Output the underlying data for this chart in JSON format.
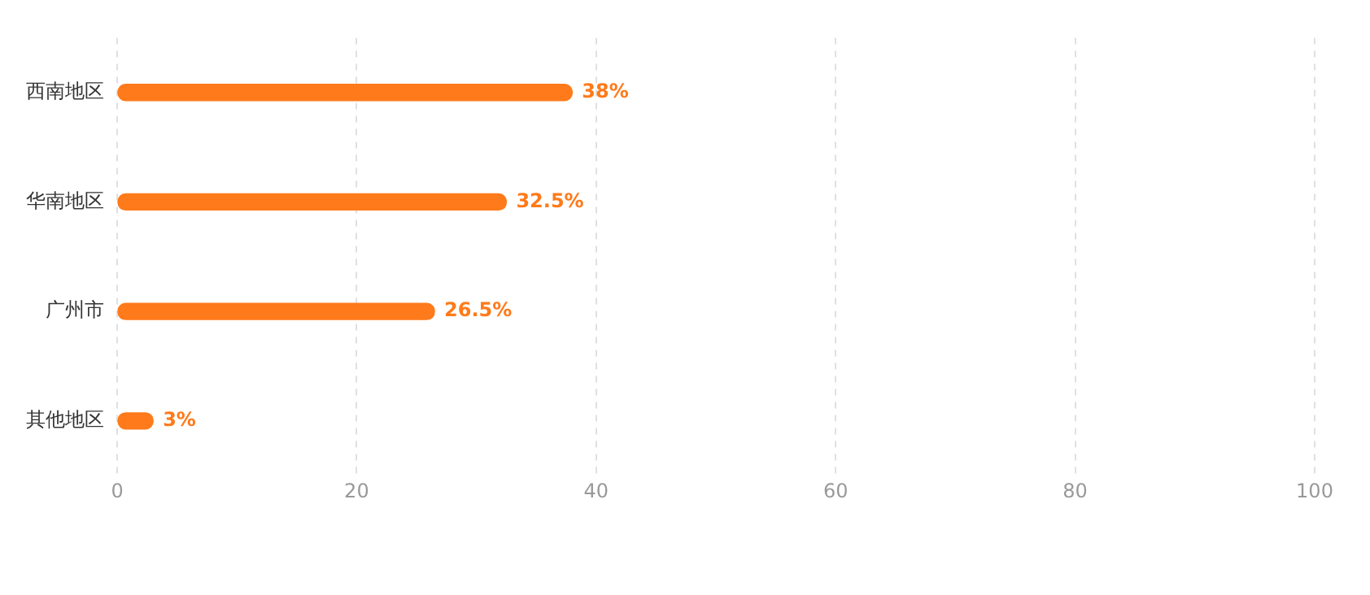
{
  "chart_data": {
    "type": "bar",
    "orientation": "horizontal",
    "categories": [
      "西南地区",
      "华南地区",
      "广州市",
      "其他地区"
    ],
    "values": [
      38,
      32.5,
      26.5,
      3
    ],
    "color": "#ff7a1a",
    "value_labels": [
      "38%",
      "32.5%",
      "26.5%",
      "3%"
    ],
    "xlim": [
      0,
      100
    ],
    "xticks": [
      0,
      20,
      40,
      60,
      80,
      100
    ],
    "grid": "x",
    "legend": false
  }
}
